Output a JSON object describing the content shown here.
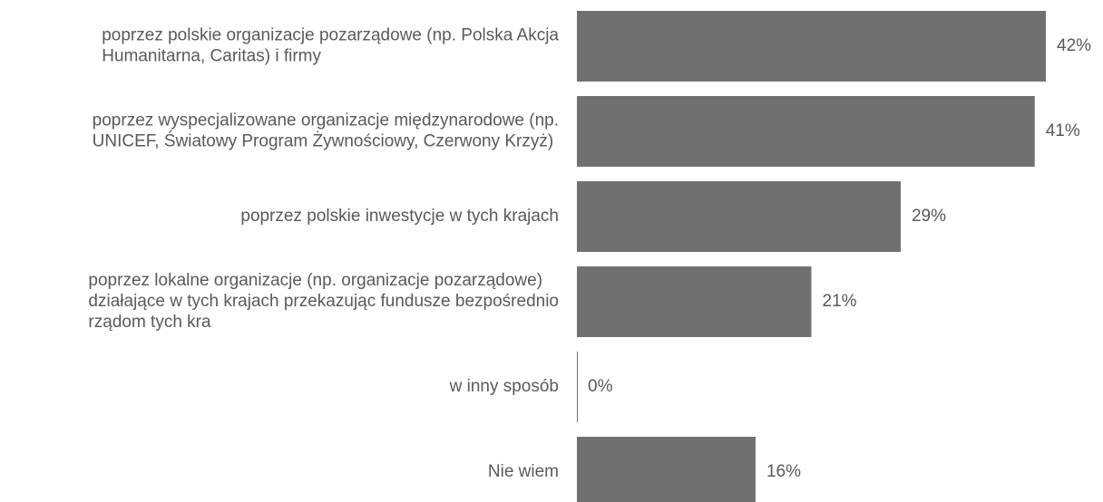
{
  "chart_data": {
    "type": "bar",
    "orientation": "horizontal",
    "color": "#707070",
    "categories": [
      [
        "poprzez polskie organizacje pozarządowe (np. Polska Akcja",
        "Humanitarna, Caritas) i firmy"
      ],
      [
        "poprzez wyspecjalizowane organizacje międzynarodowe (np.",
        "UNICEF, Światowy Program Żywnościowy, Czerwony Krzyż)"
      ],
      [
        "poprzez polskie inwestycje w tych krajach"
      ],
      [
        "poprzez lokalne organizacje (np. organizacje pozarządowe)",
        "działające w tych krajach przekazując fundusze bezpośrednio",
        "rządom tych kra"
      ],
      [
        "w inny sposób"
      ],
      [
        "Nie wiem"
      ]
    ],
    "values": [
      42,
      41,
      29,
      21,
      0,
      16
    ],
    "value_labels": [
      "42%",
      "41%",
      "29%",
      "21%",
      "0%",
      "16%"
    ]
  }
}
